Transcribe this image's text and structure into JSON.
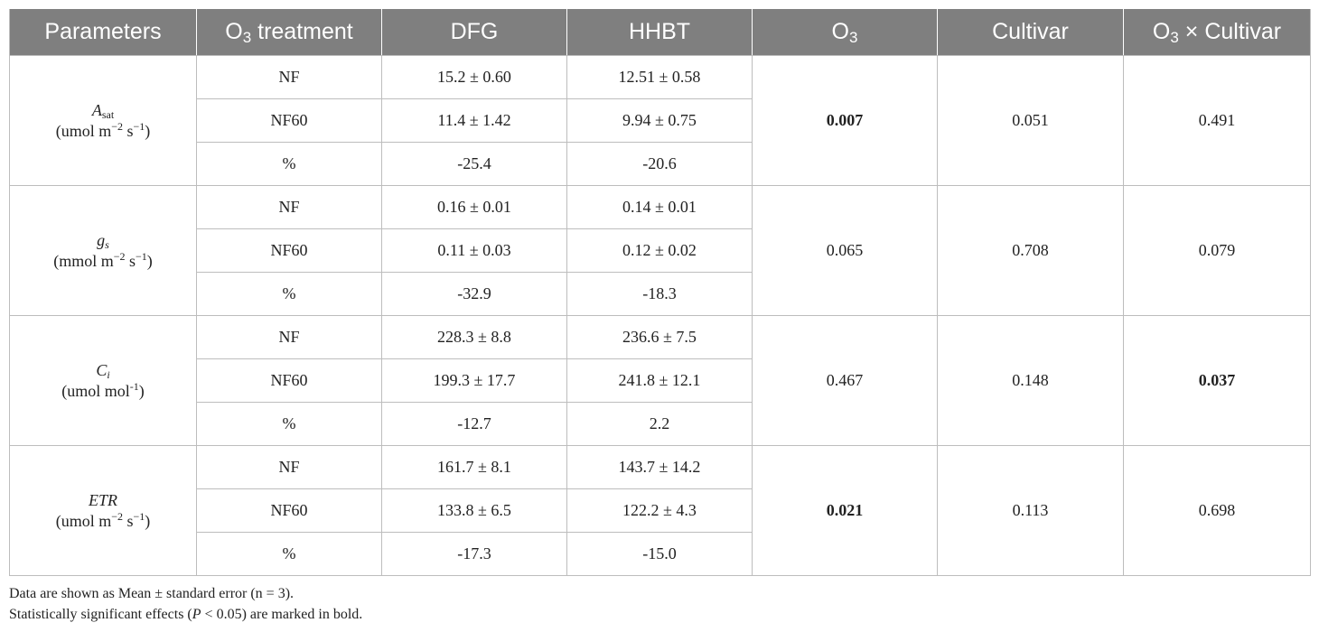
{
  "table": {
    "headers": {
      "parameters": "Parameters",
      "o3_treatment_base": "O",
      "o3_treatment_sub": "3",
      "o3_treatment_rest": " treatment",
      "dfg": "DFG",
      "hhbt": "HHBT",
      "o3_base": "O",
      "o3_sub": "3",
      "cultivar": "Cultivar",
      "interaction_base": "O",
      "interaction_sub": "3",
      "interaction_rest": " × Cultivar"
    },
    "groups": [
      {
        "param_symbol": "A",
        "param_subscript": "sat",
        "unit_prefix": "(umol m",
        "unit_sup1": "−2",
        "unit_mid": " s",
        "unit_sup2": "−1",
        "unit_suffix": ")",
        "rows": [
          {
            "treatment": "NF",
            "dfg": "15.2 ± 0.60",
            "hhbt": "12.51 ± 0.58"
          },
          {
            "treatment": "NF60",
            "dfg": "11.4 ± 1.42",
            "hhbt": "9.94 ± 0.75"
          },
          {
            "treatment": "%",
            "dfg": "-25.4",
            "hhbt": "-20.6"
          }
        ],
        "o3": "0.007",
        "o3_bold": true,
        "cultivar": "0.051",
        "cultivar_bold": false,
        "interaction": "0.491",
        "interaction_bold": false
      },
      {
        "param_symbol": "g",
        "param_subscript": "s",
        "unit_prefix": "(mmol m",
        "unit_sup1": "−2",
        "unit_mid": " s",
        "unit_sup2": "−1",
        "unit_suffix": ")",
        "rows": [
          {
            "treatment": "NF",
            "dfg": "0.16 ± 0.01",
            "hhbt": "0.14 ± 0.01"
          },
          {
            "treatment": "NF60",
            "dfg": "0.11 ± 0.03",
            "hhbt": "0.12 ± 0.02"
          },
          {
            "treatment": "%",
            "dfg": "-32.9",
            "hhbt": "-18.3"
          }
        ],
        "o3": "0.065",
        "o3_bold": false,
        "cultivar": "0.708",
        "cultivar_bold": false,
        "interaction": "0.079",
        "interaction_bold": false
      },
      {
        "param_symbol": "C",
        "param_subscript": "i",
        "unit_prefix": "(umol mol",
        "unit_sup1": "-1",
        "unit_mid": "",
        "unit_sup2": "",
        "unit_suffix": ")",
        "rows": [
          {
            "treatment": "NF",
            "dfg": "228.3 ± 8.8",
            "hhbt": "236.6 ± 7.5"
          },
          {
            "treatment": "NF60",
            "dfg": "199.3 ± 17.7",
            "hhbt": "241.8 ± 12.1"
          },
          {
            "treatment": "%",
            "dfg": "-12.7",
            "hhbt": "2.2"
          }
        ],
        "o3": "0.467",
        "o3_bold": false,
        "cultivar": "0.148",
        "cultivar_bold": false,
        "interaction": "0.037",
        "interaction_bold": true
      },
      {
        "param_symbol": "ETR",
        "param_subscript": "",
        "unit_prefix": "(umol m",
        "unit_sup1": "−2",
        "unit_mid": " s",
        "unit_sup2": "−1",
        "unit_suffix": ")",
        "rows": [
          {
            "treatment": "NF",
            "dfg": "161.7 ± 8.1",
            "hhbt": "143.7 ± 14.2"
          },
          {
            "treatment": "NF60",
            "dfg": "133.8 ± 6.5",
            "hhbt": "122.2 ± 4.3"
          },
          {
            "treatment": "%",
            "dfg": "-17.3",
            "hhbt": "-15.0"
          }
        ],
        "o3": "0.021",
        "o3_bold": true,
        "cultivar": "0.113",
        "cultivar_bold": false,
        "interaction": "0.698",
        "interaction_bold": false
      }
    ]
  },
  "notes": {
    "line1": "Data are shown as Mean ± standard error (n = 3).",
    "line2_prefix": "Statistically significant effects (",
    "line2_p": "P",
    "line2_suffix": " < 0.05) are marked in bold."
  }
}
